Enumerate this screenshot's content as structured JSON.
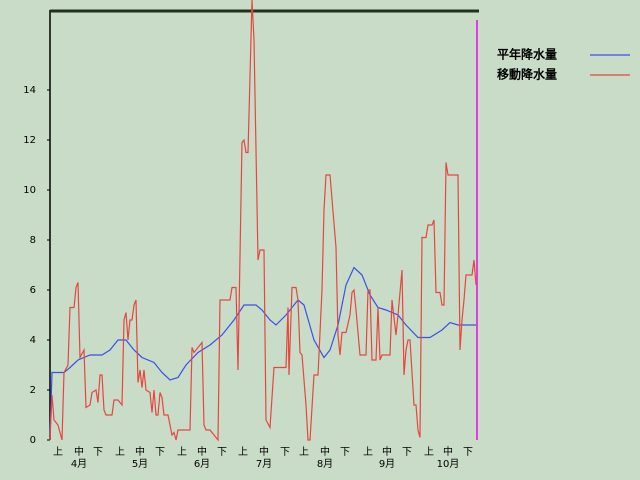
{
  "chart_data": {
    "type": "line",
    "xlim": [
      0,
      214
    ],
    "ylim": [
      0,
      17.2
    ],
    "yticks": [
      0,
      2,
      4,
      6,
      8,
      10,
      12,
      14
    ],
    "xticks": [
      {
        "value": 4,
        "label": "上"
      },
      {
        "value": 14.5,
        "label": "中"
      },
      {
        "value": 24,
        "label": "下"
      },
      {
        "value": 35,
        "label": "上"
      },
      {
        "value": 45,
        "label": "中"
      },
      {
        "value": 55,
        "label": "下"
      },
      {
        "value": 66,
        "label": "上"
      },
      {
        "value": 76,
        "label": "中"
      },
      {
        "value": 86,
        "label": "下"
      },
      {
        "value": 96.5,
        "label": "上"
      },
      {
        "value": 107,
        "label": "中"
      },
      {
        "value": 117.5,
        "label": "下"
      },
      {
        "value": 127,
        "label": "上"
      },
      {
        "value": 137.5,
        "label": "中"
      },
      {
        "value": 147.5,
        "label": "下"
      },
      {
        "value": 159,
        "label": "上"
      },
      {
        "value": 168.5,
        "label": "中"
      },
      {
        "value": 178.5,
        "label": "下"
      },
      {
        "value": 189.5,
        "label": "上"
      },
      {
        "value": 199,
        "label": "中"
      },
      {
        "value": 209,
        "label": "下"
      }
    ],
    "month_labels": [
      {
        "value": 14.5,
        "label": "4月"
      },
      {
        "value": 45,
        "label": "5月"
      },
      {
        "value": 76,
        "label": "6月"
      },
      {
        "value": 107,
        "label": "7月"
      },
      {
        "value": 137.5,
        "label": "8月"
      },
      {
        "value": 168.5,
        "label": "9月"
      },
      {
        "value": 199,
        "label": "10月"
      }
    ],
    "series": [
      {
        "name": "平年降水量",
        "color": "#3c50e6",
        "x": [
          0,
          1,
          7,
          10,
          14,
          20,
          26,
          30,
          34,
          38,
          42,
          46,
          52,
          56,
          60,
          64,
          68,
          74,
          80,
          86,
          92,
          97,
          103,
          106,
          110,
          113,
          118,
          124,
          127,
          132,
          137,
          140,
          144,
          148,
          152,
          156,
          160,
          164,
          168,
          174,
          178,
          184,
          190,
          196,
          200,
          204,
          213
        ],
        "values": [
          0.2,
          2.7,
          2.7,
          2.9,
          3.2,
          3.4,
          3.4,
          3.6,
          4.0,
          4.0,
          3.6,
          3.3,
          3.1,
          2.7,
          2.4,
          2.5,
          3.0,
          3.5,
          3.8,
          4.2,
          4.8,
          5.4,
          5.4,
          5.2,
          4.8,
          4.6,
          5.0,
          5.6,
          5.4,
          4.0,
          3.3,
          3.6,
          4.6,
          6.2,
          6.9,
          6.6,
          5.8,
          5.3,
          5.2,
          5.0,
          4.6,
          4.1,
          4.1,
          4.4,
          4.7,
          4.6,
          4.6
        ]
      },
      {
        "name": "移動降水量",
        "color": "#e64640",
        "x": [
          0,
          1,
          2,
          4,
          6,
          7,
          9,
          10,
          12,
          13,
          14,
          15,
          17,
          18,
          20,
          21,
          23,
          24,
          25,
          26,
          27,
          28,
          31,
          32,
          34,
          36,
          37,
          38,
          39,
          40,
          41,
          42,
          43,
          44,
          45,
          46,
          47,
          48,
          50,
          51,
          52,
          53,
          54,
          55,
          56,
          57,
          59,
          61,
          62,
          63,
          64,
          70,
          71,
          72,
          76,
          77,
          78,
          80,
          84,
          85,
          90,
          91,
          93,
          94,
          96,
          97,
          98,
          99,
          101,
          102,
          104,
          105,
          107,
          108,
          110,
          112,
          118,
          119,
          119.5,
          121,
          123,
          124,
          125,
          126,
          128,
          129,
          130,
          132,
          134,
          136,
          137,
          138,
          140,
          143,
          144,
          145,
          146,
          148,
          150,
          151,
          152,
          153,
          155,
          158,
          159,
          160,
          161,
          163,
          164,
          165,
          166,
          170,
          171,
          173,
          174,
          176,
          177,
          178,
          179,
          180,
          182,
          183,
          184,
          185,
          186,
          188,
          189,
          191,
          192,
          193,
          195,
          196,
          197,
          198,
          199,
          204,
          205,
          206,
          207,
          208,
          211,
          212,
          213
        ],
        "values": [
          0,
          1.8,
          0.8,
          0.6,
          0,
          2.7,
          3,
          5.3,
          5.3,
          6.1,
          6.3,
          3.3,
          3.6,
          1.3,
          1.4,
          1.9,
          2,
          1.5,
          2.6,
          2.6,
          1.2,
          1.0,
          1.0,
          1.6,
          1.6,
          1.4,
          4.8,
          5.1,
          4.0,
          4.8,
          4.8,
          5.4,
          5.6,
          2.3,
          2.8,
          2.1,
          2.8,
          2.0,
          1.9,
          1.1,
          2,
          1,
          1,
          1.9,
          1.7,
          1,
          1,
          0.2,
          0.3,
          0,
          0.4,
          0.4,
          3.7,
          3.5,
          3.9,
          0.6,
          0.4,
          0.4,
          0,
          5.6,
          5.6,
          6.1,
          6.1,
          2.8,
          11.9,
          12,
          11.5,
          11.5,
          17.6,
          16,
          7.2,
          7.6,
          7.6,
          0.8,
          0.5,
          2.9,
          2.9,
          5.3,
          2.6,
          6.1,
          6.1,
          5.6,
          3.5,
          3.4,
          1.4,
          0,
          0,
          2.6,
          2.6,
          6,
          9.2,
          10.6,
          10.6,
          7.7,
          4.2,
          3.4,
          4.3,
          4.3,
          5,
          5.9,
          6,
          5.2,
          3.4,
          3.4,
          6.0,
          6,
          3.2,
          3.2,
          5.3,
          3.2,
          3.4,
          3.4,
          5.6,
          4.2,
          5,
          6.8,
          2.6,
          3.6,
          4,
          4,
          1.4,
          1.4,
          0.4,
          0.1,
          8.1,
          8.1,
          8.6,
          8.6,
          8.8,
          5.9,
          5.9,
          5.4,
          5.4,
          11.1,
          10.6,
          10.6,
          3.6,
          4.8,
          5.6,
          6.6,
          6.6,
          7.2,
          6.2
        ]
      }
    ]
  }
}
